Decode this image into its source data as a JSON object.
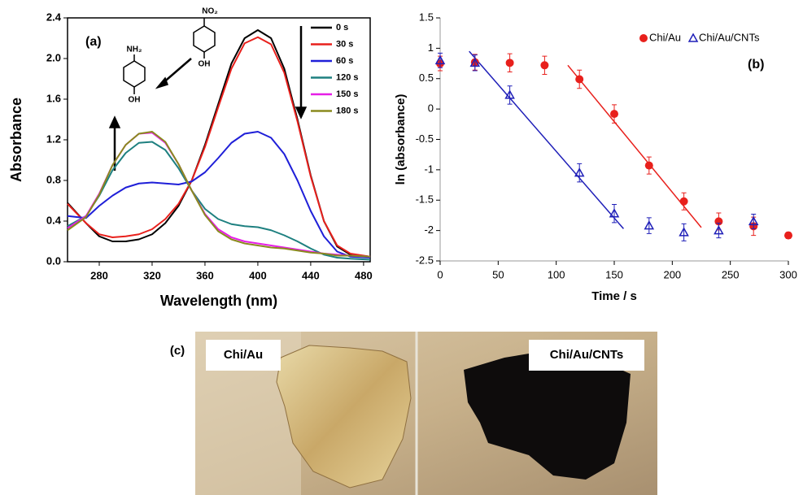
{
  "chart_data": [
    {
      "type": "line",
      "panel_label": "(a)",
      "xlabel": "Wavelength (nm)",
      "ylabel": "Absorbance",
      "xlim": [
        256,
        485
      ],
      "ylim": [
        0,
        2.4
      ],
      "xticks": [
        280,
        320,
        360,
        400,
        440,
        480
      ],
      "yticks": [
        {
          "value": 0,
          "label": "0.0"
        },
        0.4,
        0.8,
        1.2,
        1.6,
        {
          "value": 2,
          "label": "2.0"
        },
        2.4
      ],
      "x": [
        256,
        270,
        280,
        290,
        300,
        310,
        320,
        330,
        340,
        350,
        360,
        370,
        380,
        390,
        400,
        410,
        420,
        430,
        440,
        450,
        460,
        470,
        485
      ],
      "series": [
        {
          "name": "0 s",
          "color": "#000000",
          "values": [
            0.58,
            0.38,
            0.25,
            0.2,
            0.2,
            0.22,
            0.27,
            0.38,
            0.55,
            0.8,
            1.15,
            1.55,
            1.95,
            2.2,
            2.28,
            2.2,
            1.9,
            1.4,
            0.85,
            0.4,
            0.15,
            0.07,
            0.05
          ]
        },
        {
          "name": "30 s",
          "color": "#e8201c",
          "values": [
            0.57,
            0.38,
            0.27,
            0.24,
            0.25,
            0.27,
            0.32,
            0.42,
            0.57,
            0.8,
            1.13,
            1.52,
            1.9,
            2.15,
            2.21,
            2.14,
            1.86,
            1.38,
            0.84,
            0.4,
            0.16,
            0.08,
            0.05
          ]
        },
        {
          "name": "60 s",
          "color": "#1f1fd8",
          "values": [
            0.45,
            0.43,
            0.55,
            0.65,
            0.73,
            0.77,
            0.78,
            0.77,
            0.76,
            0.79,
            0.88,
            1.02,
            1.17,
            1.26,
            1.28,
            1.22,
            1.06,
            0.8,
            0.5,
            0.25,
            0.1,
            0.05,
            0.04
          ]
        },
        {
          "name": "120 s",
          "color": "#1e8080",
          "values": [
            0.35,
            0.45,
            0.65,
            0.9,
            1.07,
            1.17,
            1.18,
            1.1,
            0.92,
            0.7,
            0.52,
            0.42,
            0.37,
            0.35,
            0.34,
            0.31,
            0.26,
            0.2,
            0.13,
            0.07,
            0.04,
            0.03,
            0.02
          ]
        },
        {
          "name": "150 s",
          "color": "#e61ee6",
          "values": [
            0.33,
            0.45,
            0.67,
            0.95,
            1.15,
            1.26,
            1.27,
            1.17,
            0.96,
            0.7,
            0.47,
            0.32,
            0.24,
            0.2,
            0.18,
            0.16,
            0.14,
            0.12,
            0.1,
            0.08,
            0.07,
            0.06,
            0.05
          ]
        },
        {
          "name": "180 s",
          "color": "#8a8a1e",
          "values": [
            0.31,
            0.44,
            0.66,
            0.95,
            1.15,
            1.26,
            1.28,
            1.18,
            0.96,
            0.7,
            0.46,
            0.3,
            0.22,
            0.18,
            0.16,
            0.14,
            0.13,
            0.11,
            0.09,
            0.08,
            0.06,
            0.06,
            0.05
          ]
        }
      ],
      "annotations": [
        "NH₂",
        "OH",
        "NO₂",
        "OH"
      ]
    },
    {
      "type": "scatter",
      "panel_label": "(b)",
      "xlabel": "Time / s",
      "ylabel": "ln (absorbance)",
      "xlim": [
        0,
        300
      ],
      "ylim": [
        -2.5,
        1.5
      ],
      "xticks": [
        0,
        50,
        100,
        150,
        200,
        250,
        300
      ],
      "yticks": [
        1.5,
        1,
        0.5,
        0,
        -0.5,
        -1,
        -1.5,
        -2,
        -2.5
      ],
      "series": [
        {
          "name": "Chi/Au",
          "color": "#e8201c",
          "marker": "circle",
          "x": [
            0,
            30,
            60,
            90,
            120,
            150,
            180,
            210,
            240,
            270,
            300
          ],
          "values": [
            0.75,
            0.77,
            0.76,
            0.72,
            0.49,
            -0.08,
            -0.93,
            -1.52,
            -1.85,
            -1.93,
            -2.08
          ],
          "errors": [
            0.12,
            0.13,
            0.15,
            0.15,
            0.15,
            0.15,
            0.14,
            0.14,
            0.14,
            0.15,
            0.05
          ]
        },
        {
          "name": "Chi/Au/CNTs",
          "color": "#1f1fb8",
          "marker": "triangle",
          "x": [
            0,
            30,
            60,
            120,
            150,
            180,
            210,
            240,
            270
          ],
          "values": [
            0.8,
            0.76,
            0.23,
            -1.05,
            -1.72,
            -1.92,
            -2.03,
            -2.0,
            -1.85
          ],
          "errors": [
            0.12,
            0.13,
            0.15,
            0.15,
            0.15,
            0.13,
            0.14,
            0.12,
            0.12
          ]
        }
      ],
      "fit_lines": [
        {
          "color": "#e8201c",
          "x": [
            110,
            225
          ],
          "values": [
            0.72,
            -1.95
          ]
        },
        {
          "color": "#1f1fb8",
          "x": [
            25,
            158
          ],
          "values": [
            0.95,
            -1.97
          ]
        }
      ]
    }
  ],
  "photo": {
    "panel_label": "(c)",
    "left_label": "Chi/Au",
    "right_label": "Chi/Au/CNTs"
  }
}
